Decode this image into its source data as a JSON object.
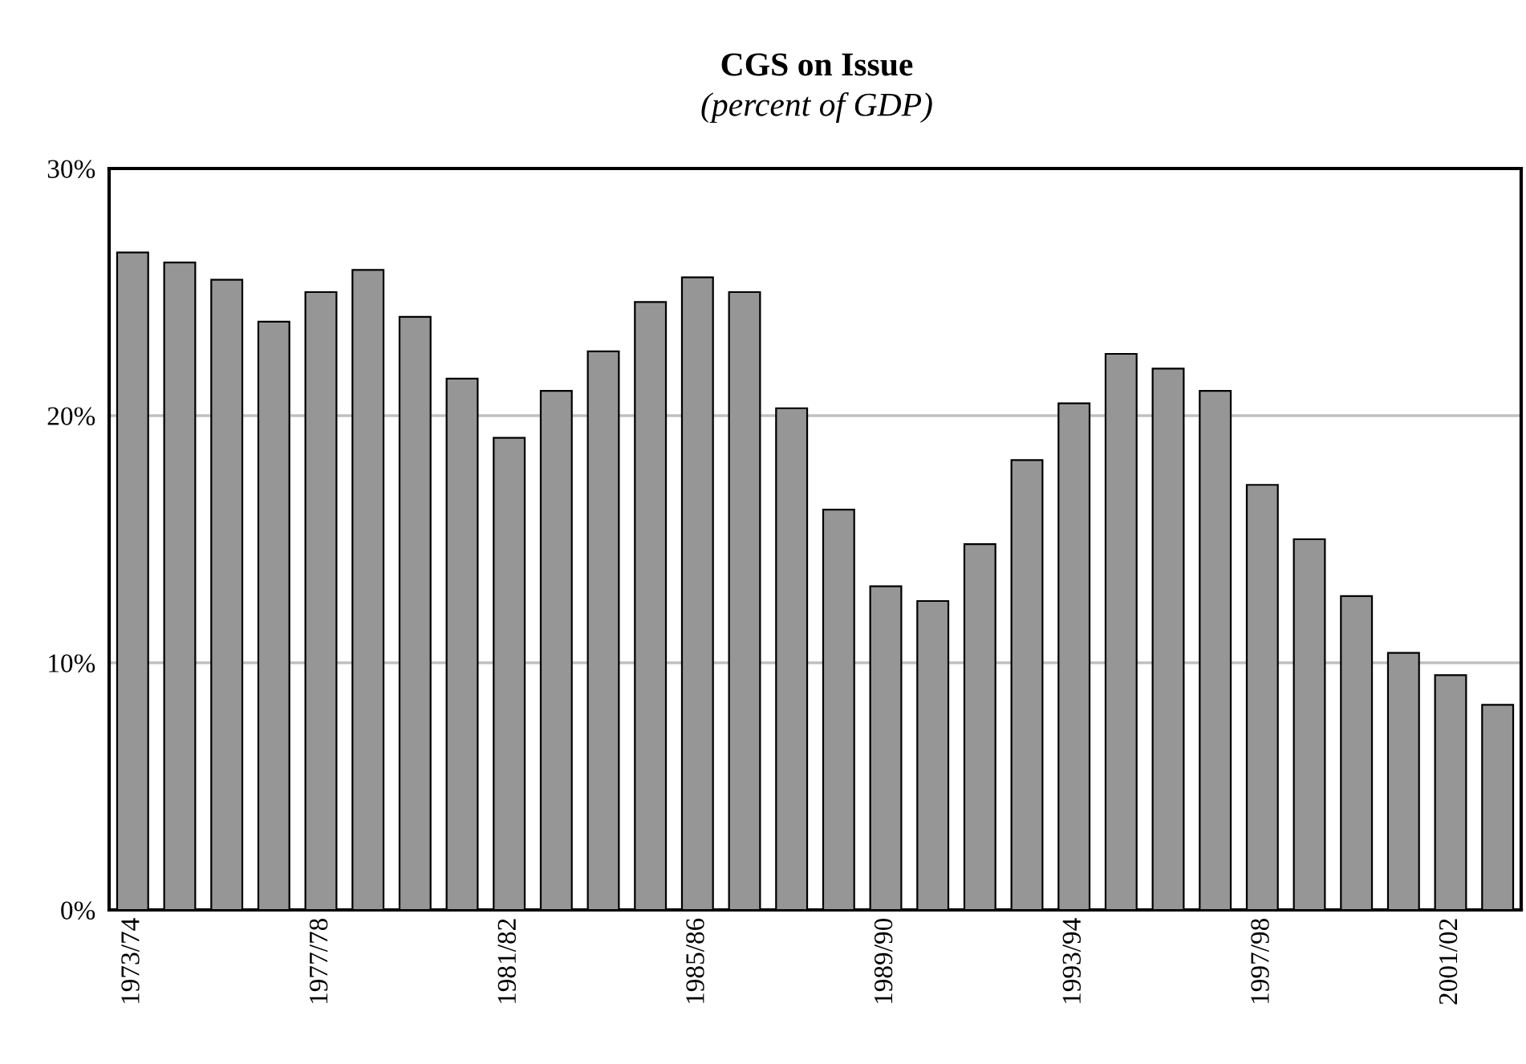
{
  "chart_data": {
    "type": "bar",
    "title": "CGS on Issue",
    "subtitle": "(percent of GDP)",
    "categories": [
      "1973/74",
      null,
      null,
      null,
      "1977/78",
      null,
      null,
      null,
      "1981/82",
      null,
      null,
      null,
      "1985/86",
      null,
      null,
      null,
      "1989/90",
      null,
      null,
      null,
      "1993/94",
      null,
      null,
      null,
      "1997/98",
      null,
      null,
      null,
      "2001/02",
      null
    ],
    "values": [
      26.6,
      26.2,
      25.5,
      23.8,
      25.0,
      25.9,
      24.0,
      21.5,
      19.1,
      21.0,
      22.6,
      24.6,
      25.6,
      25.0,
      20.3,
      16.2,
      13.1,
      12.5,
      14.8,
      18.2,
      20.5,
      22.5,
      21.9,
      21.0,
      17.2,
      15.0,
      12.7,
      10.4,
      9.5,
      8.3
    ],
    "color": "#969696",
    "ylim": [
      0,
      30
    ],
    "yticks": [
      {
        "value": 0,
        "label": "0%"
      },
      {
        "value": 10,
        "label": "10%"
      },
      {
        "value": 20,
        "label": "20%"
      },
      {
        "value": 30,
        "label": "30%"
      }
    ],
    "grid": "y"
  }
}
